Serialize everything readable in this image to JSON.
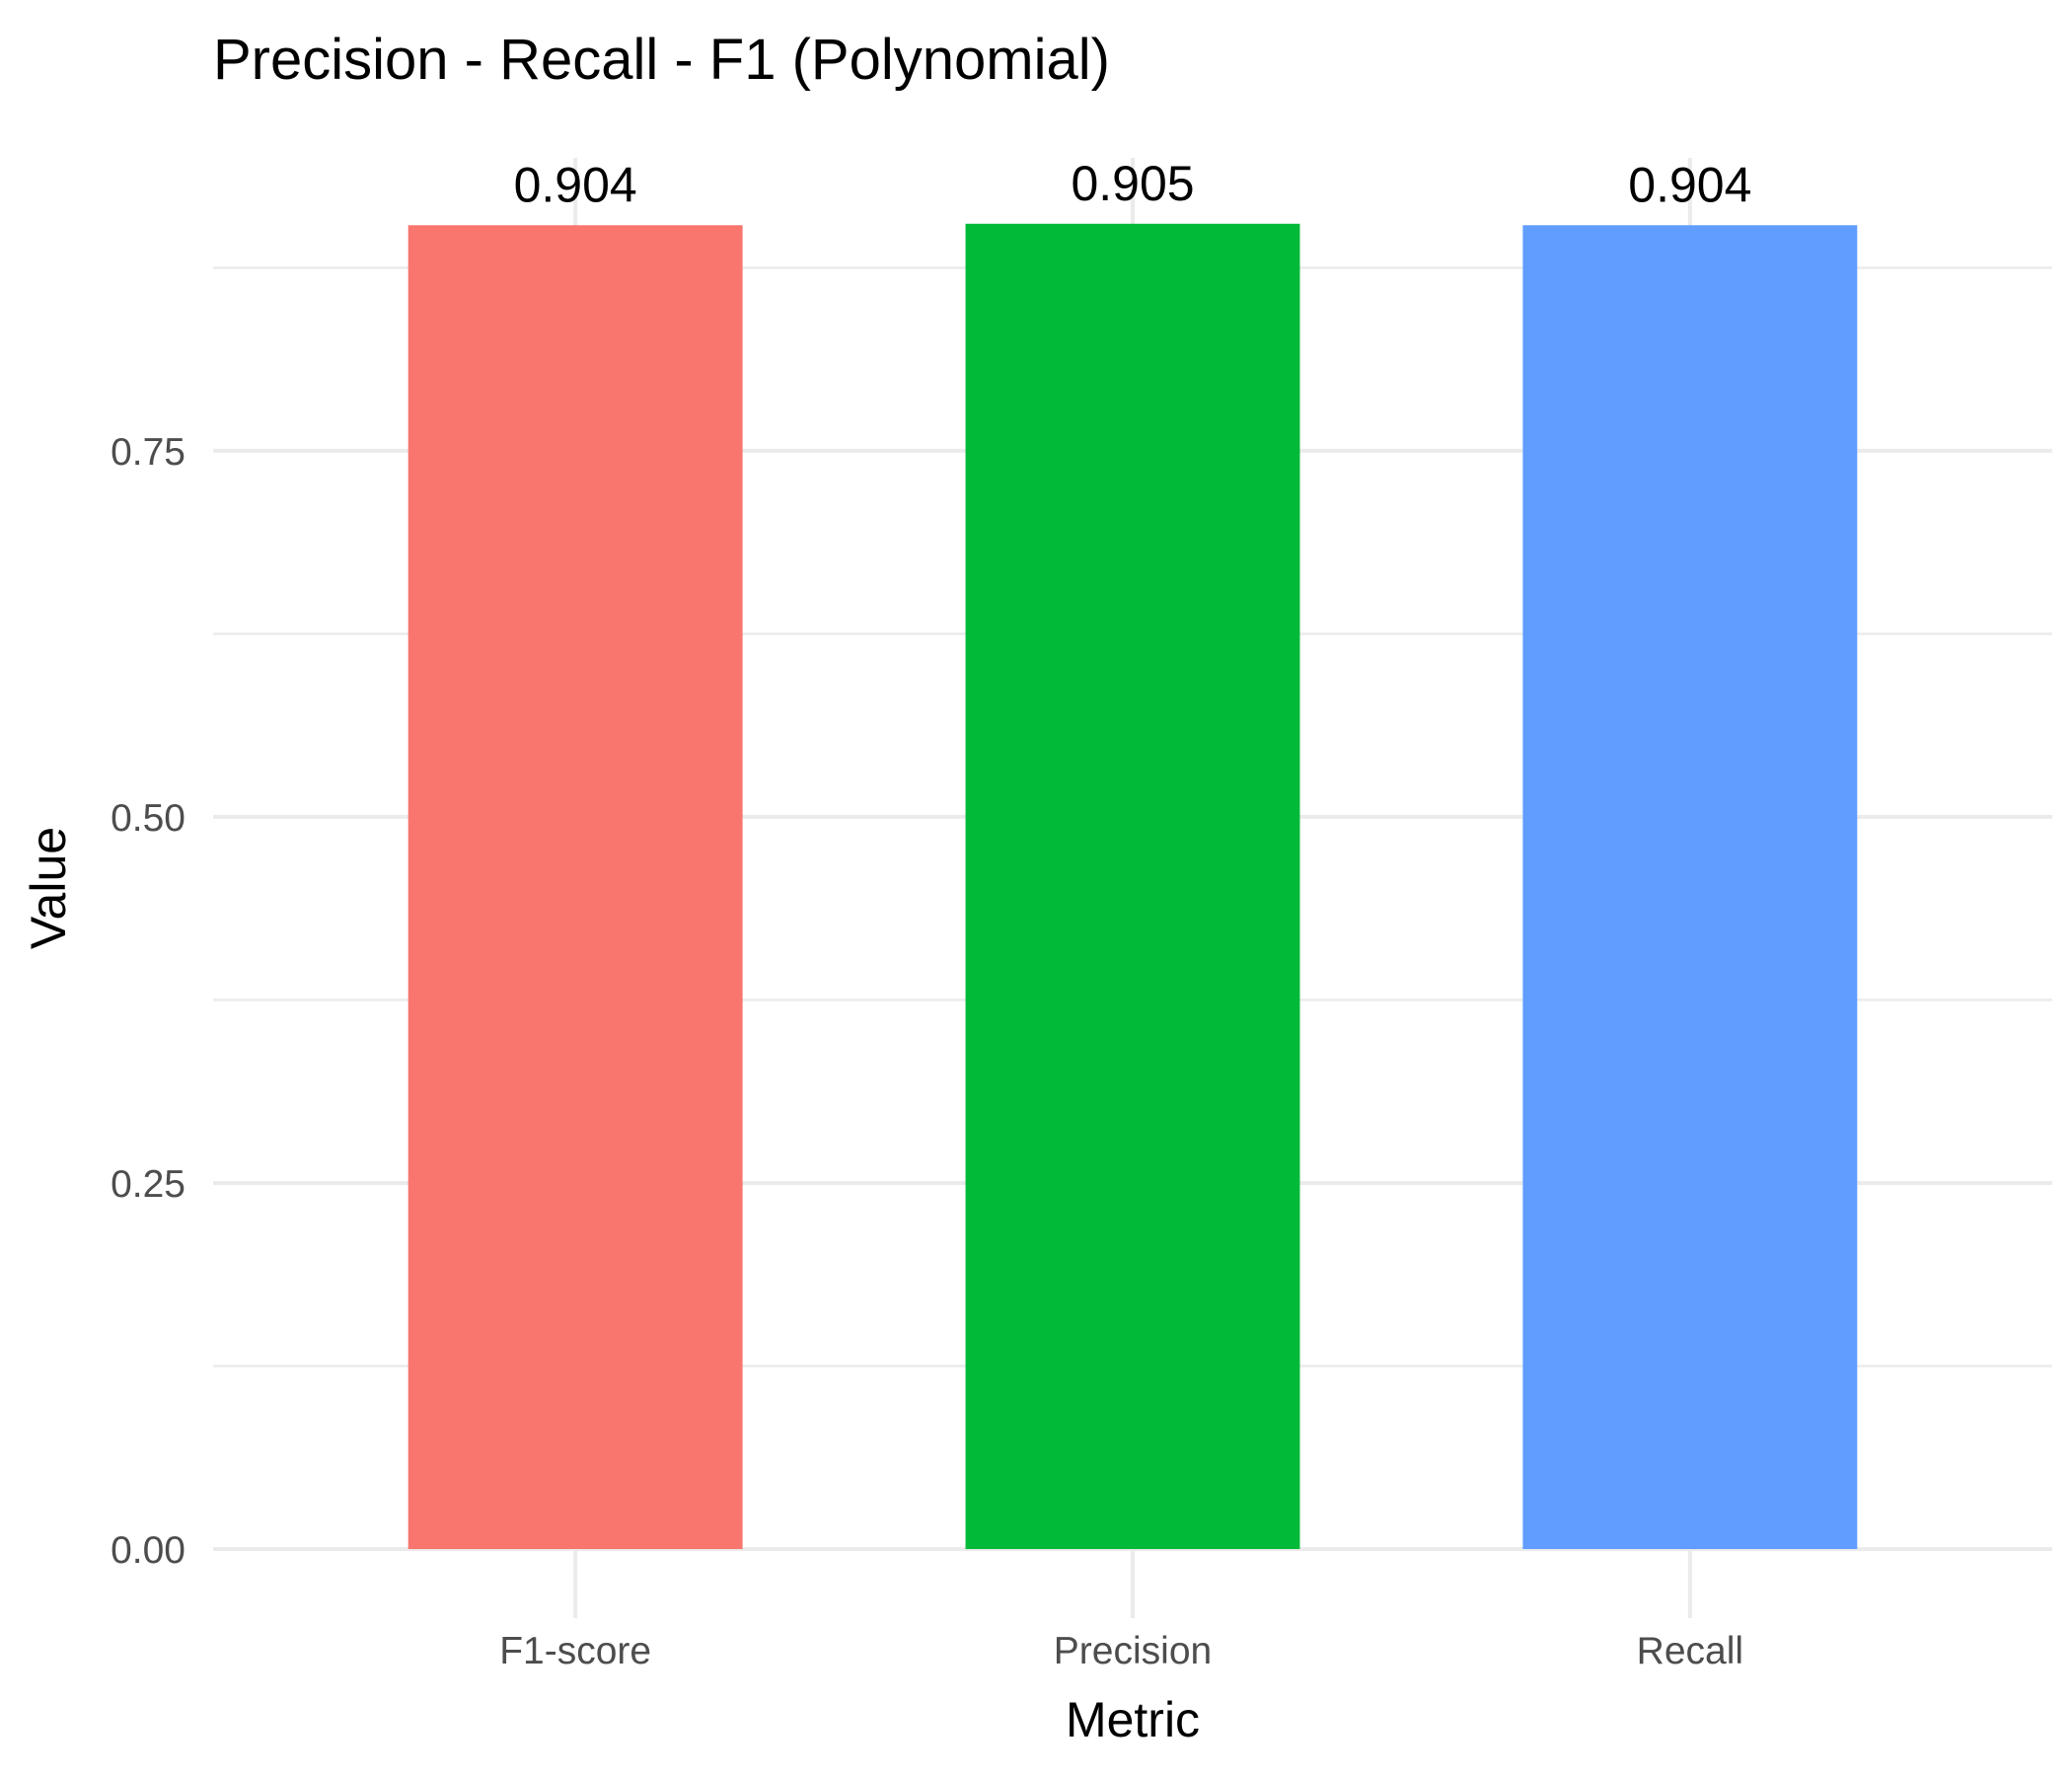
{
  "chart_data": {
    "type": "bar",
    "title": "Precision - Recall - F1 (Polynomial)",
    "xlabel": "Metric",
    "ylabel": "Value",
    "categories": [
      "F1-score",
      "Precision",
      "Recall"
    ],
    "values": [
      0.904,
      0.905,
      0.904
    ],
    "value_labels": [
      "0.904",
      "0.905",
      "0.904"
    ],
    "colors": [
      "#F8766D",
      "#00BA38",
      "#619CFF"
    ],
    "ylim": [
      0,
      0.95
    ],
    "yticks": [
      0,
      0.25,
      0.5,
      0.75
    ],
    "ytick_labels": [
      "0.00",
      "0.25",
      "0.50",
      "0.75"
    ],
    "grid": true,
    "legend": "none"
  }
}
